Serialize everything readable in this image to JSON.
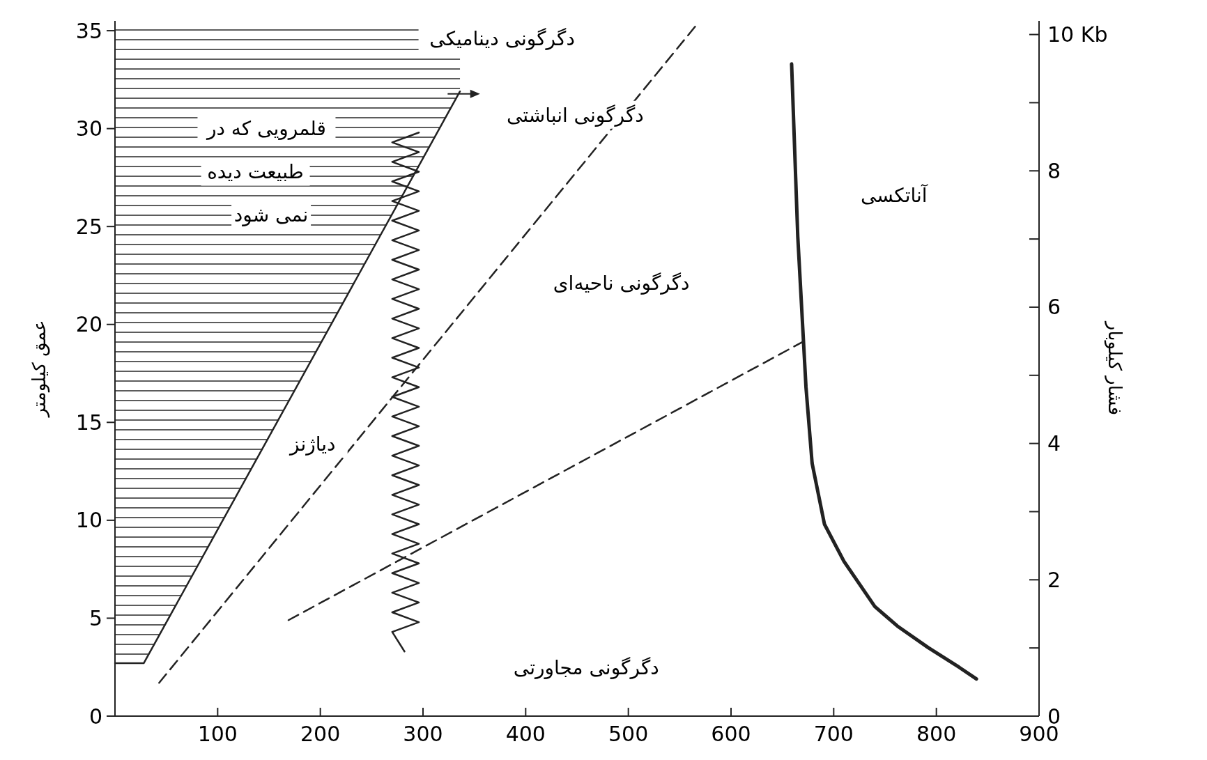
{
  "chart_data": {
    "type": "line",
    "ylabel": "عمق کیلومتر",
    "y2label": "فشار کیلوبار",
    "xlim": [
      0,
      900
    ],
    "xticks": [
      100,
      200,
      300,
      400,
      500,
      600,
      700,
      800,
      900
    ],
    "ylim": [
      0,
      35.5
    ],
    "yticks": [
      0,
      5,
      10,
      15,
      20,
      25,
      30,
      35
    ],
    "y2lim": [
      0,
      10.2
    ],
    "y2ticks": [
      0,
      {
        "value": 1,
        "label": null
      },
      2,
      {
        "value": 3,
        "label": null
      },
      4,
      {
        "value": 5,
        "label": null
      },
      6,
      {
        "value": 7,
        "label": null
      },
      8,
      {
        "value": 9,
        "label": null
      },
      {
        "value": 10,
        "label": "10 Kb"
      }
    ],
    "series": [
      {
        "color": "#222222",
        "line_style": "solid",
        "x": [
          0,
          28,
          336
        ],
        "values": [
          2.7,
          2.7,
          31.9
        ],
        "lower": [
          2.7,
          2.7,
          31.9
        ],
        "upper": [
          35.5,
          35.5,
          35.5
        ]
      },
      {
        "color": "#222222",
        "line_style": "dashed",
        "x": [
          43,
          568
        ],
        "values": [
          1.7,
          35.4
        ]
      },
      {
        "color": "#222222",
        "line_style": "dashed",
        "x": [
          169,
          673
        ],
        "values": [
          4.9,
          19.2
        ]
      },
      {
        "color": "#222222",
        "line_style": "solid",
        "x": [
          282,
          270,
          296,
          270,
          296,
          270,
          296,
          270,
          296,
          270,
          296,
          270,
          296,
          270,
          296,
          270,
          296,
          270,
          296,
          270,
          296,
          270,
          296,
          270,
          296,
          270,
          296,
          270,
          296,
          270,
          296,
          270,
          296,
          270,
          296,
          270,
          296,
          270,
          296,
          270,
          296,
          270,
          296,
          270,
          296,
          270,
          296,
          270,
          296,
          270,
          296,
          270,
          296
        ],
        "values": [
          3.3,
          4.3,
          4.8,
          5.3,
          5.8,
          6.3,
          6.8,
          7.3,
          7.8,
          8.3,
          8.8,
          9.3,
          9.8,
          10.3,
          10.8,
          11.3,
          11.8,
          12.3,
          12.8,
          13.3,
          13.8,
          14.3,
          14.8,
          15.3,
          15.8,
          16.3,
          16.8,
          17.3,
          17.8,
          18.3,
          18.8,
          19.3,
          19.8,
          20.3,
          20.8,
          21.3,
          21.8,
          22.3,
          22.8,
          23.3,
          23.8,
          24.3,
          24.8,
          25.3,
          25.8,
          26.3,
          26.8,
          27.3,
          27.8,
          28.3,
          28.8,
          29.3,
          29.8
        ]
      },
      {
        "color": "#222222",
        "line_style": "solid",
        "x": [
          659,
          665,
          673,
          679,
          691,
          710,
          740,
          762,
          792,
          822,
          839
        ],
        "values": [
          33.3,
          24.5,
          16.8,
          12.9,
          9.8,
          7.9,
          5.6,
          4.6,
          3.5,
          2.5,
          1.9
        ]
      }
    ],
    "annotations": [
      "دگرگونی دینامیکی",
      "دگرگونی انباشتی",
      "قلمرویی که در",
      "طبیعت دیده",
      "نمی شود",
      "آناتکسی",
      "دگرگونی ناحیه‌ای",
      "دیاژنز",
      "دگرگونی مجاورتی"
    ]
  }
}
